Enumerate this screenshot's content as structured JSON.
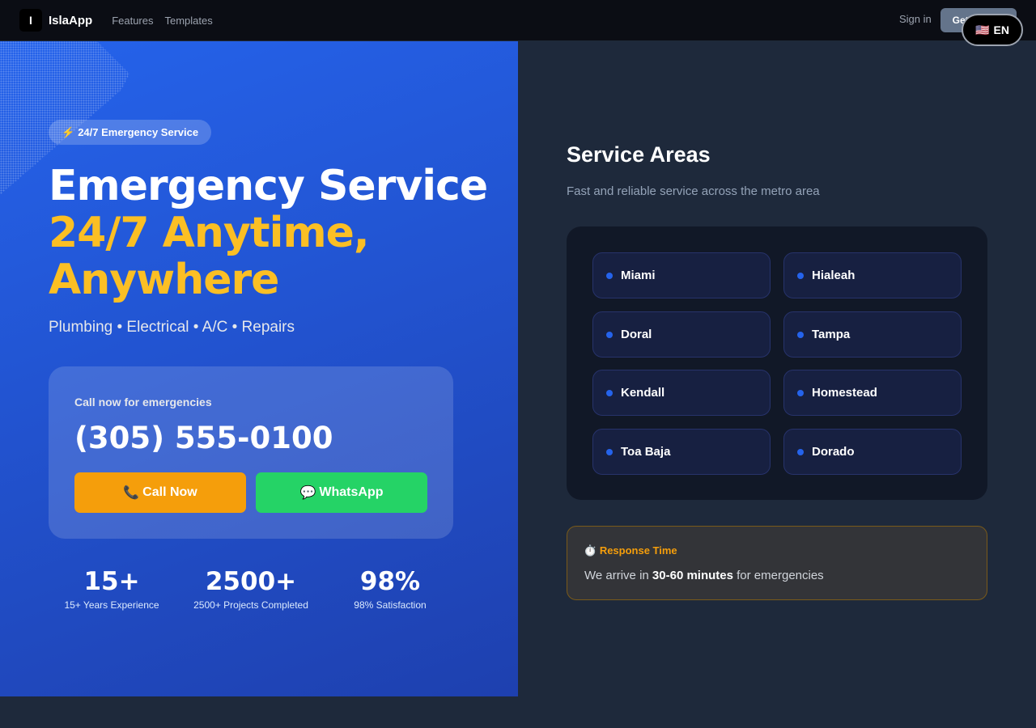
{
  "nav": {
    "logo_letter": "I",
    "brand": "IslaApp",
    "links": [
      "Features",
      "Templates"
    ],
    "sign_in": "Sign in",
    "get_started": "Get Started",
    "language": "EN",
    "language_flag": "🇺🇸"
  },
  "hero": {
    "badge": "24/7 Emergency Service",
    "badge_icon": "⚡",
    "title_line1": "Emergency Service",
    "title_line2": "24/7 Anytime,",
    "title_line3": "Anywhere",
    "services": "Plumbing • Electrical • A/C • Repairs",
    "call_card": {
      "label": "Call now for emergencies",
      "phone": "(305) 555-0100",
      "call_icon": "📞",
      "call_label": "Call Now",
      "whatsapp_icon": "💬",
      "whatsapp_label": "WhatsApp"
    },
    "stats": [
      {
        "value": "15+",
        "label": "15+ Years Experience"
      },
      {
        "value": "2500+",
        "label": "2500+ Projects Completed"
      },
      {
        "value": "98%",
        "label": "98% Satisfaction"
      }
    ]
  },
  "service_areas": {
    "title": "Service Areas",
    "subtitle": "Fast and reliable service across the metro area",
    "areas": [
      "Miami",
      "Hialeah",
      "Doral",
      "Tampa",
      "Kendall",
      "Homestead",
      "Toa Baja",
      "Dorado"
    ]
  },
  "response": {
    "icon": "⏱️",
    "title": "Response Time",
    "text_before": "We arrive in ",
    "highlight": "30-60 minutes",
    "text_after": " for emergencies"
  },
  "colors": {
    "accent": "#2563eb",
    "highlight": "#fbbf24",
    "call": "#f59e0b",
    "whatsapp": "#25d366"
  }
}
